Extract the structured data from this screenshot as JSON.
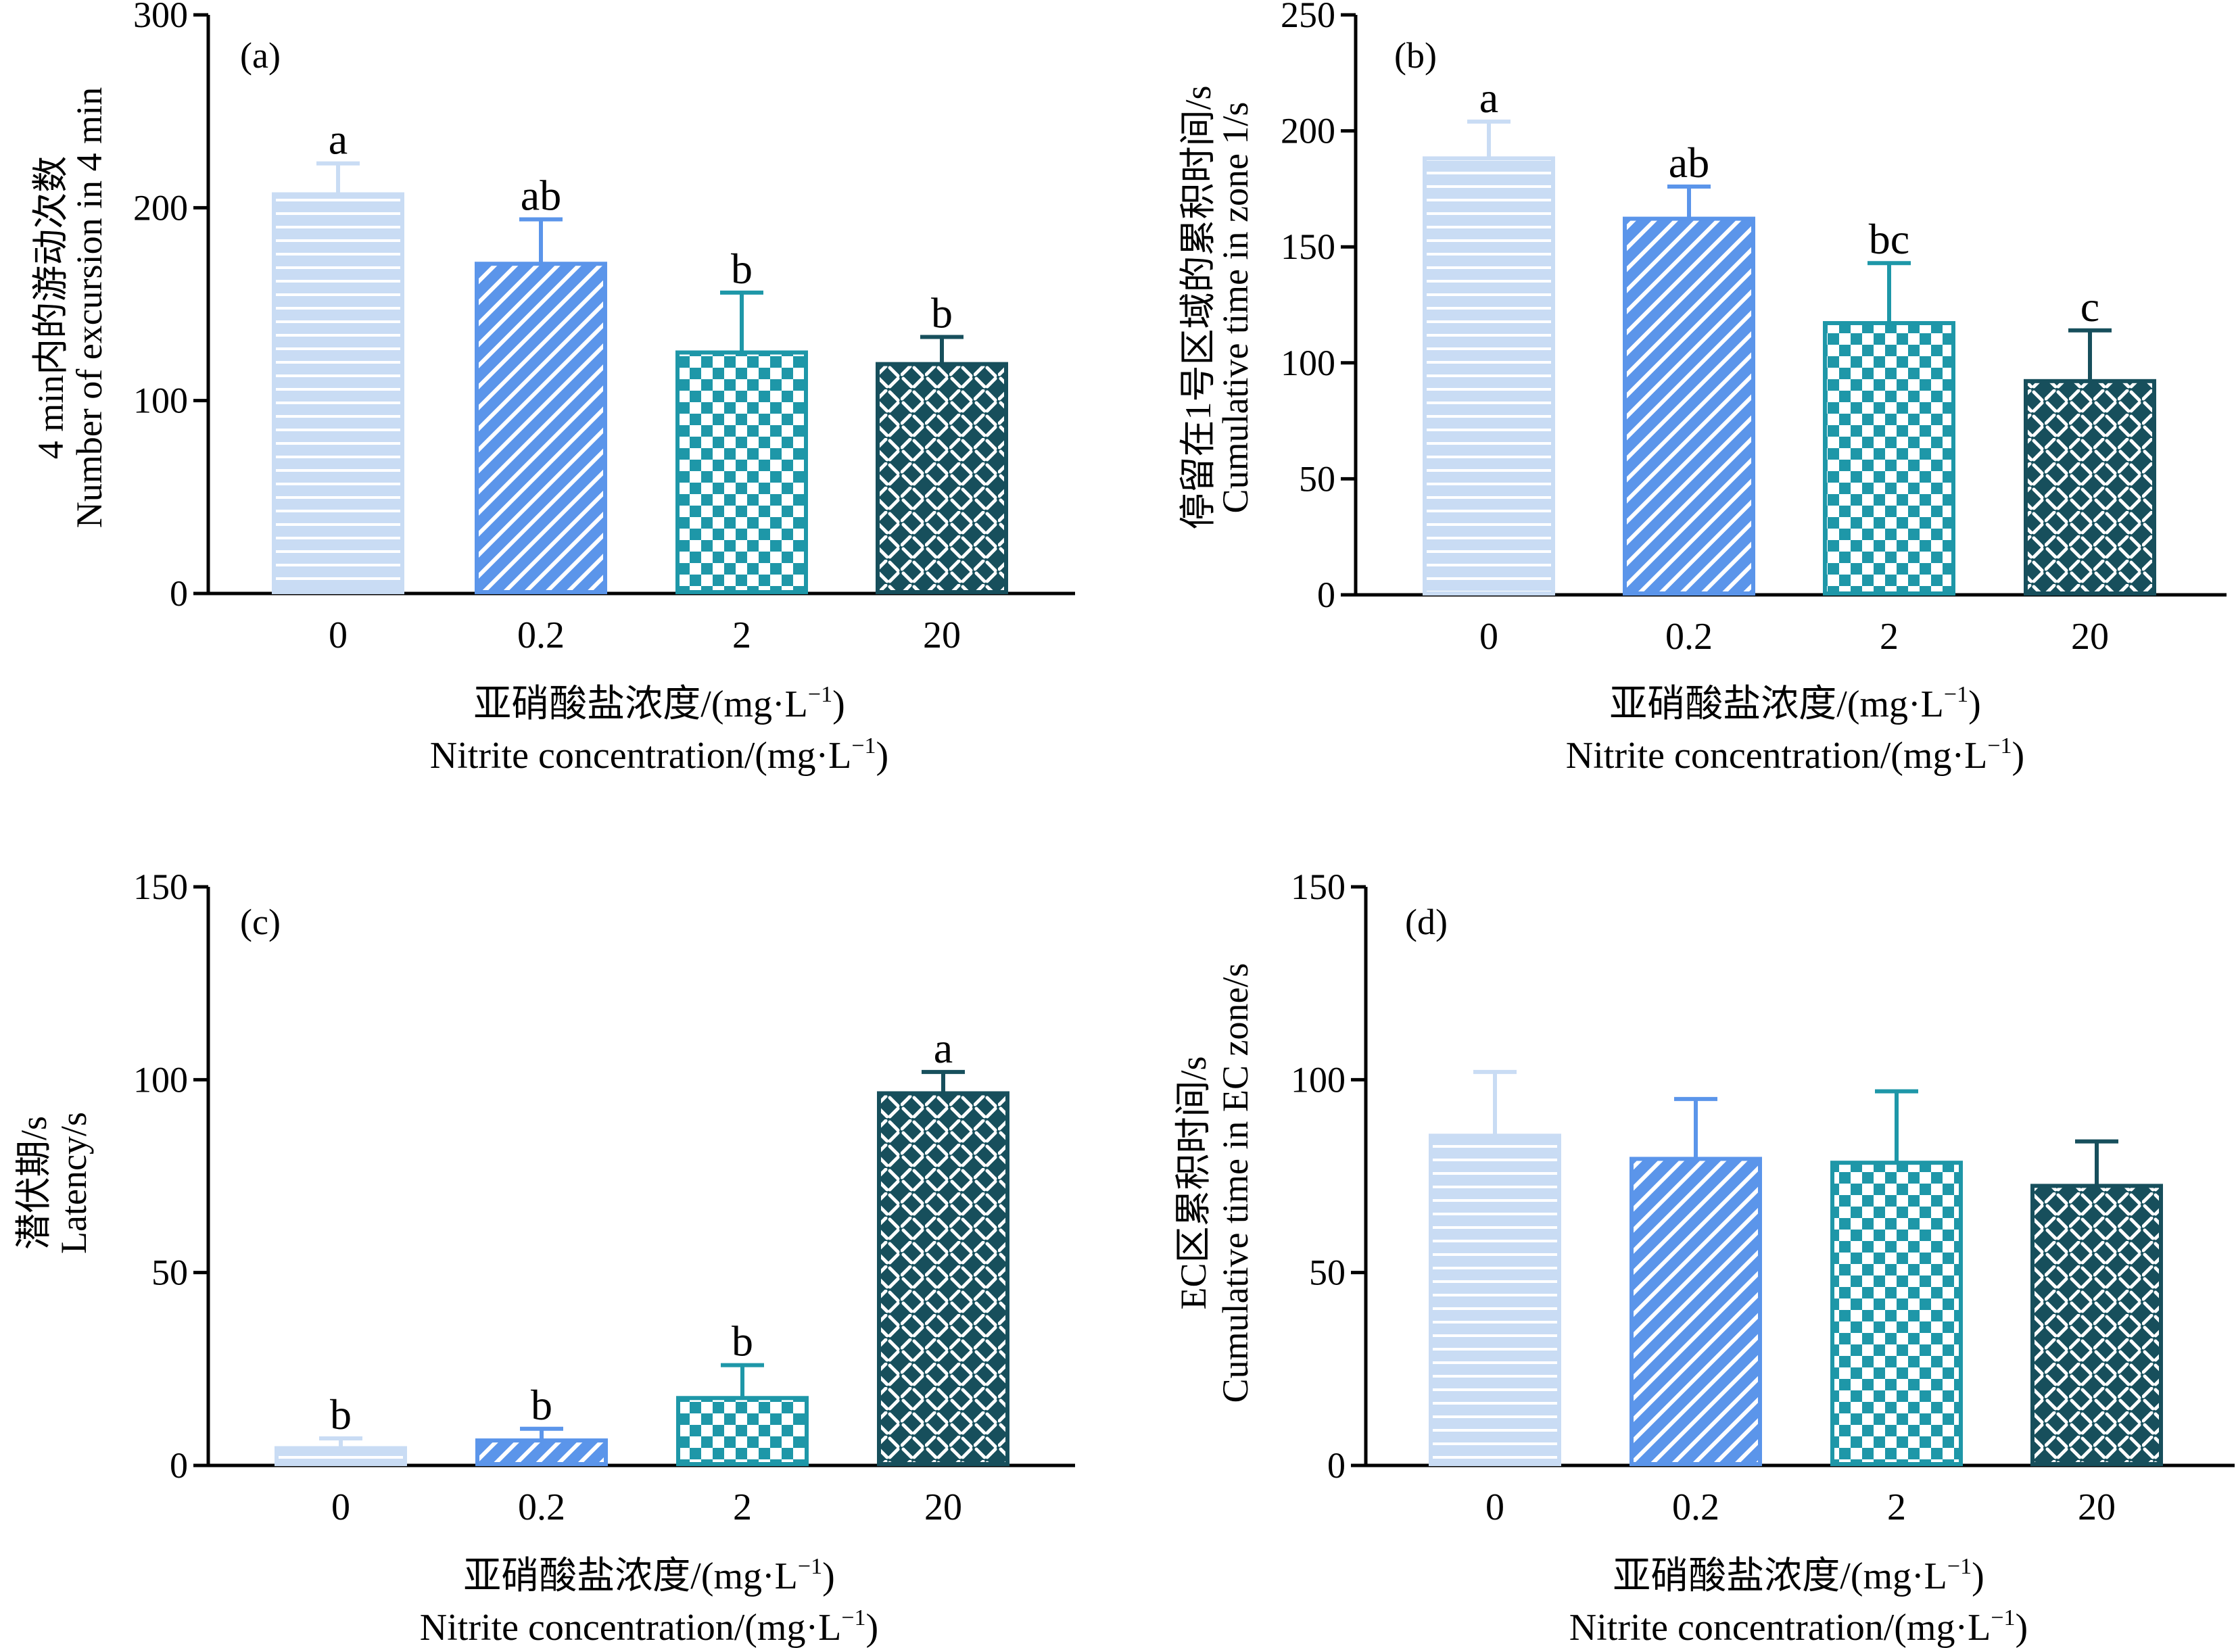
{
  "figure": {
    "x_categories": [
      "0",
      "0.2",
      "2",
      "20"
    ],
    "xlabel_zh": "亚硝酸盐浓度/(mg·L",
    "xlabel_en": "Nitrite concentration/(mg·L",
    "xlabel_sup": "−1",
    "xlabel_close": ")"
  },
  "colors": {
    "light_blue": "#c9dcf4",
    "blue": "#5b95ea",
    "teal": "#1e97a8",
    "dark_teal": "#174f5c"
  },
  "chart_data": [
    {
      "type": "bar",
      "panel": "(a)",
      "categories": [
        "0",
        "0.2",
        "2",
        "20"
      ],
      "values": [
        208,
        172,
        126,
        120
      ],
      "error": [
        15,
        22,
        30,
        13
      ],
      "letters": [
        "a",
        "ab",
        "b",
        "b"
      ],
      "ylabel_zh": "4 min内的游动次数",
      "ylabel_en": "Number of excursion in 4 min",
      "ylim": [
        0,
        300
      ],
      "yticks": [
        0,
        100,
        200,
        300
      ]
    },
    {
      "type": "bar",
      "panel": "(b)",
      "categories": [
        "0",
        "0.2",
        "2",
        "20"
      ],
      "values": [
        189,
        163,
        118,
        93
      ],
      "error": [
        15,
        13,
        25,
        21
      ],
      "letters": [
        "a",
        "ab",
        "bc",
        "c"
      ],
      "ylabel_zh": "停留在1号区域的累积时间/s",
      "ylabel_en": "Cumulative time in zone 1/s",
      "ylim": [
        0,
        250
      ],
      "yticks": [
        0,
        50,
        100,
        150,
        200,
        250
      ]
    },
    {
      "type": "bar",
      "panel": "(c)",
      "categories": [
        "0",
        "0.2",
        "2",
        "20"
      ],
      "values": [
        5,
        7,
        18,
        97
      ],
      "error": [
        2,
        2.5,
        8,
        5
      ],
      "letters": [
        "b",
        "b",
        "b",
        "a"
      ],
      "ylabel_zh": "潜伏期/s",
      "ylabel_en": "Latency/s",
      "ylim": [
        0,
        150
      ],
      "yticks": [
        0,
        50,
        100,
        150
      ]
    },
    {
      "type": "bar",
      "panel": "(d)",
      "categories": [
        "0",
        "0.2",
        "2",
        "20"
      ],
      "values": [
        86,
        80,
        79,
        73
      ],
      "error": [
        16,
        15,
        18,
        11
      ],
      "letters": [
        "",
        "",
        "",
        ""
      ],
      "ylabel_zh": "EC区累积时间/s",
      "ylabel_en": "Cumulative time in EC zone/s",
      "ylim": [
        0,
        150
      ],
      "yticks": [
        0,
        50,
        100,
        150
      ]
    }
  ]
}
